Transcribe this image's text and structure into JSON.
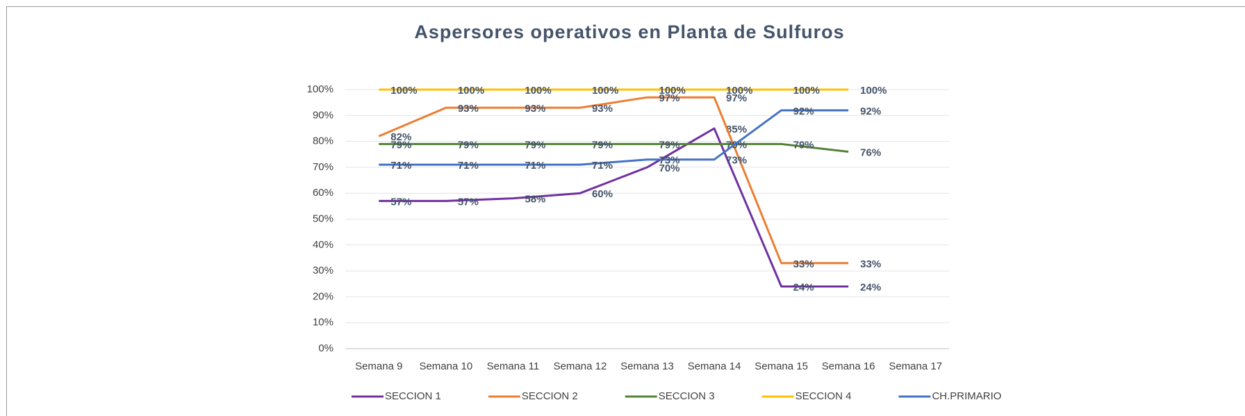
{
  "chart_data": {
    "type": "line",
    "title": "Aspersores operativos en Planta de Sulfuros",
    "categories": [
      "Semana 9",
      "Semana 10",
      "Semana 11",
      "Semana 12",
      "Semana 13",
      "Semana 14",
      "Semana 15",
      "Semana 16",
      "Semana 17"
    ],
    "ylim": [
      0,
      100
    ],
    "yticks": [
      {
        "value": 0,
        "label": "0%"
      },
      {
        "value": 10,
        "label": "10%"
      },
      {
        "value": 20,
        "label": "20%"
      },
      {
        "value": 30,
        "label": "30%"
      },
      {
        "value": 40,
        "label": "40%"
      },
      {
        "value": 50,
        "label": "50%"
      },
      {
        "value": 60,
        "label": "60%"
      },
      {
        "value": 70,
        "label": "70%"
      },
      {
        "value": 80,
        "label": "80%"
      },
      {
        "value": 90,
        "label": "90%"
      },
      {
        "value": 100,
        "label": "100%"
      }
    ],
    "grid": true,
    "legend": "bottom",
    "series": [
      {
        "name": "SECCION 1",
        "color": "#7030a0",
        "values": [
          57,
          57,
          58,
          60,
          70,
          85,
          24,
          24,
          null
        ],
        "value_labels": [
          "57%",
          "57%",
          "58%",
          "60%",
          "70%",
          "85%",
          "24%",
          "24%",
          null
        ]
      },
      {
        "name": "SECCION 2",
        "color": "#ed7d31",
        "values": [
          82,
          93,
          93,
          93,
          97,
          97,
          33,
          33,
          null
        ],
        "value_labels": [
          "82%",
          "93%",
          "93%",
          "93%",
          "97%",
          "97%",
          "33%",
          "33%",
          null
        ]
      },
      {
        "name": "SECCION 3",
        "color": "#548235",
        "values": [
          79,
          79,
          79,
          79,
          79,
          79,
          79,
          76,
          null
        ],
        "value_labels": [
          "79%",
          "79%",
          "79%",
          "79%",
          "79%",
          "79%",
          "79%",
          "76%",
          null
        ]
      },
      {
        "name": "SECCION 4",
        "color": "#ffc000",
        "values": [
          100,
          100,
          100,
          100,
          100,
          100,
          100,
          100,
          null
        ],
        "value_labels": [
          "100%",
          "100%",
          "100%",
          "100%",
          "100%",
          "100%",
          "100%",
          "100%",
          null
        ]
      },
      {
        "name": "CH.PRIMARIO",
        "color": "#4472c4",
        "values": [
          71,
          71,
          71,
          71,
          73,
          73,
          92,
          92,
          null
        ],
        "value_labels": [
          "71%",
          "71%",
          "71%",
          "71%",
          "73%",
          "73%",
          "92%",
          "92%",
          null
        ]
      }
    ]
  }
}
